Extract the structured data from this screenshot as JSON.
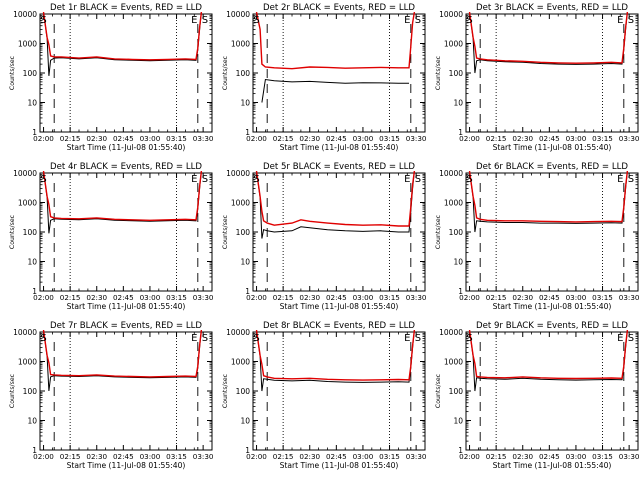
{
  "colors": {
    "events": "#000000",
    "lld": "#e00000",
    "axis": "#000000",
    "background": "#ffffff"
  },
  "common": {
    "xlabel": "Start Time (11-Jul-08 01:55:40)",
    "ylabel": "Counts/sec",
    "x_tick_labels": [
      "02:00",
      "02:15",
      "02:30",
      "02:45",
      "03:00",
      "03:15",
      "03:30"
    ],
    "y_tick_labels": [
      "1",
      "10",
      "100",
      "1000",
      "10000"
    ],
    "legend_entries": [
      "BLACK = Events",
      "RED = LLD"
    ],
    "markers": {
      "start": "S",
      "end": "E"
    }
  },
  "chart_data": [
    {
      "id": "det1r",
      "type": "line",
      "title": "Det 1r BLACK = Events, RED = LLD",
      "xlabel": "Start Time (11-Jul-08 01:55:40)",
      "ylabel": "Counts/sec",
      "xlim": [
        -2,
        95
      ],
      "ylim": [
        1,
        10000
      ],
      "yscale": "log",
      "markers": {
        "start_x": 0,
        "end_x": 85
      },
      "series": [
        {
          "name": "Events",
          "color": "#000000",
          "x": [
            0,
            2,
            3,
            4,
            6,
            10,
            20,
            30,
            40,
            50,
            60,
            70,
            80,
            86,
            87,
            88,
            89
          ],
          "y": [
            12000,
            1500,
            80,
            270,
            320,
            330,
            300,
            330,
            280,
            270,
            260,
            270,
            280,
            270,
            600,
            3000,
            12000
          ]
        },
        {
          "name": "LLD",
          "color": "#e00000",
          "x": [
            0,
            2,
            3,
            4,
            6,
            10,
            20,
            30,
            40,
            50,
            60,
            70,
            80,
            86,
            87,
            88,
            89
          ],
          "y": [
            12000,
            1600,
            900,
            380,
            350,
            350,
            320,
            350,
            300,
            290,
            280,
            290,
            300,
            290,
            700,
            3500,
            12000
          ]
        }
      ]
    },
    {
      "id": "det2r",
      "type": "line",
      "title": "Det 2r BLACK = Events, RED = LLD",
      "xlabel": "Start Time (11-Jul-08 01:55:40)",
      "ylabel": "Counts/sec",
      "xlim": [
        -2,
        95
      ],
      "ylim": [
        1,
        10000
      ],
      "yscale": "log",
      "markers": {
        "start_x": 0,
        "end_x": 85
      },
      "series": [
        {
          "name": "Events",
          "color": "#000000",
          "x": [
            3,
            5,
            10,
            20,
            30,
            40,
            50,
            60,
            70,
            80,
            86
          ],
          "y": [
            10,
            60,
            55,
            50,
            52,
            48,
            45,
            47,
            46,
            45,
            45
          ]
        },
        {
          "name": "LLD",
          "color": "#e00000",
          "x": [
            0,
            2,
            3,
            5,
            10,
            20,
            30,
            40,
            50,
            60,
            70,
            80,
            86,
            87,
            88,
            89
          ],
          "y": [
            12000,
            3000,
            200,
            160,
            150,
            140,
            160,
            155,
            145,
            150,
            155,
            150,
            150,
            800,
            5000,
            12000
          ]
        }
      ]
    },
    {
      "id": "det3r",
      "type": "line",
      "title": "Det 3r BLACK = Events, RED = LLD",
      "xlabel": "Start Time (11-Jul-08 01:55:40)",
      "ylabel": "Counts/sec",
      "xlim": [
        -2,
        95
      ],
      "ylim": [
        1,
        10000
      ],
      "yscale": "log",
      "markers": {
        "start_x": 0,
        "end_x": 85
      },
      "series": [
        {
          "name": "Events",
          "color": "#000000",
          "x": [
            0,
            2,
            3,
            4,
            6,
            10,
            20,
            30,
            40,
            50,
            60,
            70,
            80,
            86,
            87,
            88,
            89
          ],
          "y": [
            12000,
            1500,
            100,
            260,
            280,
            260,
            240,
            230,
            210,
            200,
            195,
            200,
            210,
            200,
            600,
            3000,
            12000
          ]
        },
        {
          "name": "LLD",
          "color": "#e00000",
          "x": [
            0,
            2,
            3,
            4,
            6,
            10,
            20,
            30,
            40,
            50,
            60,
            70,
            80,
            86,
            87,
            88,
            89
          ],
          "y": [
            12000,
            1600,
            800,
            320,
            300,
            280,
            260,
            250,
            230,
            220,
            215,
            220,
            230,
            220,
            700,
            3500,
            12000
          ]
        }
      ]
    },
    {
      "id": "det4r",
      "type": "line",
      "title": "Det 4r BLACK = Events, RED = LLD",
      "xlabel": "Start Time (11-Jul-08 01:55:40)",
      "ylabel": "Counts/sec",
      "xlim": [
        -2,
        95
      ],
      "ylim": [
        1,
        10000
      ],
      "yscale": "log",
      "markers": {
        "start_x": 0,
        "end_x": 85
      },
      "series": [
        {
          "name": "Events",
          "color": "#000000",
          "x": [
            0,
            2,
            3,
            4,
            6,
            10,
            20,
            30,
            40,
            50,
            60,
            70,
            80,
            86,
            87,
            88,
            89
          ],
          "y": [
            12000,
            1500,
            90,
            250,
            280,
            270,
            260,
            280,
            250,
            240,
            230,
            240,
            250,
            240,
            600,
            3000,
            12000
          ]
        },
        {
          "name": "LLD",
          "color": "#e00000",
          "x": [
            0,
            2,
            3,
            4,
            6,
            10,
            20,
            30,
            40,
            50,
            60,
            70,
            80,
            86,
            87,
            88,
            89
          ],
          "y": [
            12000,
            1600,
            850,
            330,
            300,
            290,
            280,
            300,
            270,
            260,
            250,
            260,
            270,
            260,
            700,
            3500,
            12000
          ]
        }
      ]
    },
    {
      "id": "det5r",
      "type": "line",
      "title": "Det 5r BLACK = Events, RED = LLD",
      "xlabel": "Start Time (11-Jul-08 01:55:40)",
      "ylabel": "Counts/sec",
      "xlim": [
        -2,
        95
      ],
      "ylim": [
        1,
        10000
      ],
      "yscale": "log",
      "markers": {
        "start_x": 0,
        "end_x": 85
      },
      "series": [
        {
          "name": "Events",
          "color": "#000000",
          "x": [
            0,
            2,
            3,
            4,
            6,
            10,
            20,
            25,
            30,
            40,
            50,
            60,
            70,
            80,
            86,
            87,
            88,
            89
          ],
          "y": [
            12000,
            1500,
            60,
            120,
            110,
            100,
            110,
            150,
            140,
            120,
            110,
            105,
            110,
            100,
            100,
            500,
            3000,
            12000
          ]
        },
        {
          "name": "LLD",
          "color": "#e00000",
          "x": [
            0,
            2,
            3,
            4,
            6,
            10,
            20,
            25,
            30,
            40,
            50,
            60,
            70,
            80,
            86,
            87,
            88,
            89
          ],
          "y": [
            12000,
            1600,
            500,
            240,
            200,
            170,
            200,
            260,
            230,
            200,
            180,
            170,
            175,
            160,
            160,
            700,
            4000,
            12000
          ]
        }
      ]
    },
    {
      "id": "det6r",
      "type": "line",
      "title": "Det 6r BLACK = Events, RED = LLD",
      "xlabel": "Start Time (11-Jul-08 01:55:40)",
      "ylabel": "Counts/sec",
      "xlim": [
        -2,
        95
      ],
      "ylim": [
        1,
        10000
      ],
      "yscale": "log",
      "markers": {
        "start_x": 0,
        "end_x": 85
      },
      "series": [
        {
          "name": "Events",
          "color": "#000000",
          "x": [
            0,
            2,
            3,
            4,
            6,
            10,
            20,
            30,
            40,
            50,
            60,
            70,
            80,
            86,
            87,
            88,
            89
          ],
          "y": [
            12000,
            1500,
            100,
            240,
            230,
            220,
            210,
            210,
            200,
            200,
            195,
            200,
            205,
            200,
            600,
            3000,
            12000
          ]
        },
        {
          "name": "LLD",
          "color": "#e00000",
          "x": [
            0,
            2,
            3,
            4,
            6,
            10,
            20,
            30,
            40,
            50,
            60,
            70,
            80,
            86,
            87,
            88,
            89
          ],
          "y": [
            12000,
            1600,
            800,
            300,
            270,
            250,
            240,
            240,
            230,
            225,
            220,
            225,
            230,
            225,
            700,
            3500,
            12000
          ]
        }
      ]
    },
    {
      "id": "det7r",
      "type": "line",
      "title": "Det 7r BLACK = Events, RED = LLD",
      "xlabel": "Start Time (11-Jul-08 01:55:40)",
      "ylabel": "Counts/sec",
      "xlim": [
        -2,
        95
      ],
      "ylim": [
        1,
        10000
      ],
      "yscale": "log",
      "markers": {
        "start_x": 0,
        "end_x": 85
      },
      "series": [
        {
          "name": "Events",
          "color": "#000000",
          "x": [
            0,
            2,
            3,
            4,
            6,
            10,
            20,
            30,
            40,
            50,
            60,
            70,
            80,
            86,
            87,
            88,
            89
          ],
          "y": [
            12000,
            1500,
            100,
            300,
            330,
            320,
            310,
            330,
            300,
            290,
            280,
            290,
            300,
            290,
            600,
            3000,
            12000
          ]
        },
        {
          "name": "LLD",
          "color": "#e00000",
          "x": [
            0,
            2,
            3,
            4,
            6,
            10,
            20,
            30,
            40,
            50,
            60,
            70,
            80,
            86,
            87,
            88,
            89
          ],
          "y": [
            12000,
            1600,
            900,
            360,
            350,
            340,
            330,
            350,
            320,
            310,
            300,
            310,
            320,
            310,
            700,
            3500,
            12000
          ]
        }
      ]
    },
    {
      "id": "det8r",
      "type": "line",
      "title": "Det 8r BLACK = Events, RED = LLD",
      "xlabel": "Start Time (11-Jul-08 01:55:40)",
      "ylabel": "Counts/sec",
      "xlim": [
        -2,
        95
      ],
      "ylim": [
        1,
        10000
      ],
      "yscale": "log",
      "markers": {
        "start_x": 0,
        "end_x": 85
      },
      "series": [
        {
          "name": "Events",
          "color": "#000000",
          "x": [
            0,
            2,
            3,
            4,
            6,
            10,
            20,
            30,
            40,
            50,
            60,
            70,
            80,
            86,
            87,
            88,
            89
          ],
          "y": [
            12000,
            1500,
            100,
            260,
            250,
            230,
            220,
            230,
            210,
            200,
            195,
            200,
            205,
            200,
            600,
            3000,
            12000
          ]
        },
        {
          "name": "LLD",
          "color": "#e00000",
          "x": [
            0,
            2,
            3,
            4,
            6,
            10,
            20,
            30,
            40,
            50,
            60,
            70,
            80,
            86,
            87,
            88,
            89
          ],
          "y": [
            12000,
            1600,
            800,
            330,
            300,
            270,
            260,
            270,
            250,
            240,
            235,
            240,
            245,
            240,
            700,
            3500,
            12000
          ]
        }
      ]
    },
    {
      "id": "det9r",
      "type": "line",
      "title": "Det 9r BLACK = Events, RED = LLD",
      "xlabel": "Start Time (11-Jul-08 01:55:40)",
      "ylabel": "Counts/sec",
      "xlim": [
        -2,
        95
      ],
      "ylim": [
        1,
        10000
      ],
      "yscale": "log",
      "markers": {
        "start_x": 0,
        "end_x": 85
      },
      "series": [
        {
          "name": "Events",
          "color": "#000000",
          "x": [
            0,
            2,
            3,
            4,
            6,
            10,
            20,
            30,
            40,
            50,
            60,
            70,
            80,
            86,
            87,
            88,
            89
          ],
          "y": [
            12000,
            1500,
            100,
            280,
            270,
            260,
            250,
            270,
            250,
            240,
            235,
            240,
            245,
            240,
            600,
            3000,
            12000
          ]
        },
        {
          "name": "LLD",
          "color": "#e00000",
          "x": [
            0,
            2,
            3,
            4,
            6,
            10,
            20,
            30,
            40,
            50,
            60,
            70,
            80,
            86,
            87,
            88,
            89
          ],
          "y": [
            12000,
            1600,
            850,
            310,
            300,
            290,
            280,
            300,
            280,
            270,
            265,
            270,
            275,
            270,
            700,
            3500,
            12000
          ]
        }
      ]
    }
  ]
}
